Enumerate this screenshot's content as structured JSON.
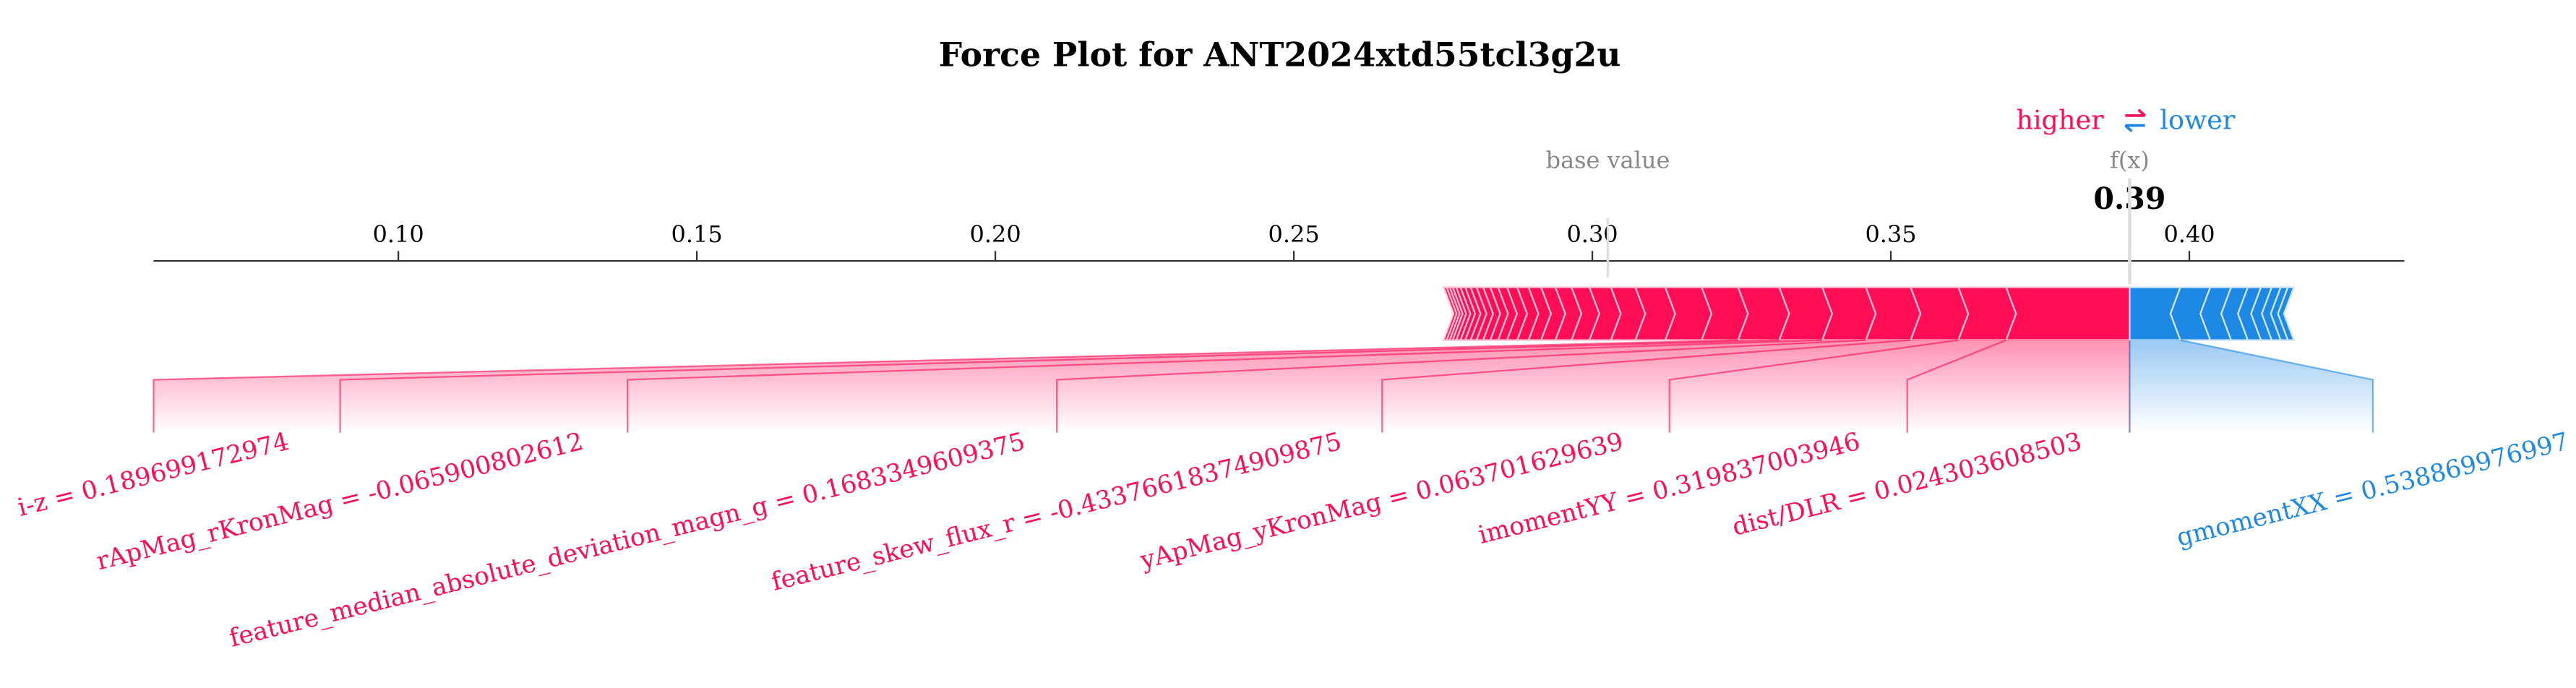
{
  "chart_data": {
    "type": "force",
    "title": "Force Plot for ANT2024xtd55tcl3g2u",
    "legend": {
      "higher": "higher",
      "lower": "lower"
    },
    "base_value_label": "base value",
    "output_label": "f(x)",
    "output_value": 0.39,
    "base_value": 0.3026,
    "xlim": [
      0.059,
      0.436
    ],
    "xticks": [
      {
        "value": 0.1,
        "label": "0.10"
      },
      0.15,
      {
        "value": 0.2,
        "label": "0.20"
      },
      0.25,
      {
        "value": 0.3,
        "label": "0.30"
      },
      0.35,
      {
        "value": 0.4,
        "label": "0.40"
      }
    ],
    "colors": {
      "positive": "#ff0d57",
      "negative": "#1e88e5"
    },
    "positive": {
      "labels": [
        "dist/DLR = 0.024303608503",
        "imomentYY = 0.319837003946",
        "yApMag_yKronMag = 0.063701629639",
        "feature_skew_flux_r = -0.43376618374909875",
        "feature_median_absolute_deviation_magn_g = 0.1683349609375",
        "rApMag_rKronMag = -0.065900802612",
        "i-z = 0.189699172974",
        null,
        null,
        null,
        null,
        null,
        null,
        null,
        null,
        null,
        null,
        null,
        null,
        null,
        null,
        null,
        null,
        null,
        null,
        null,
        null,
        null,
        null,
        null
      ],
      "values": [
        0.0207,
        0.008,
        0.008,
        0.0075,
        0.0073,
        0.0072,
        0.0069,
        0.0061,
        0.0061,
        0.005,
        0.0041,
        0.0036,
        0.003,
        0.0027,
        0.0024,
        0.0021,
        0.0019,
        0.0017,
        0.0015,
        0.0013,
        0.0012,
        0.0011,
        0.001,
        0.0009,
        0.0008,
        0.0007,
        0.0006,
        0.0005,
        0.0005,
        0.0005
      ]
    },
    "negative": {
      "labels": [
        "gmomentXX = 0.538869976997",
        null,
        null,
        null,
        null,
        null,
        null,
        null,
        null
      ],
      "values": [
        0.0085,
        0.005,
        0.0035,
        0.0028,
        0.0022,
        0.0018,
        0.0015,
        0.0012,
        0.001
      ]
    }
  }
}
